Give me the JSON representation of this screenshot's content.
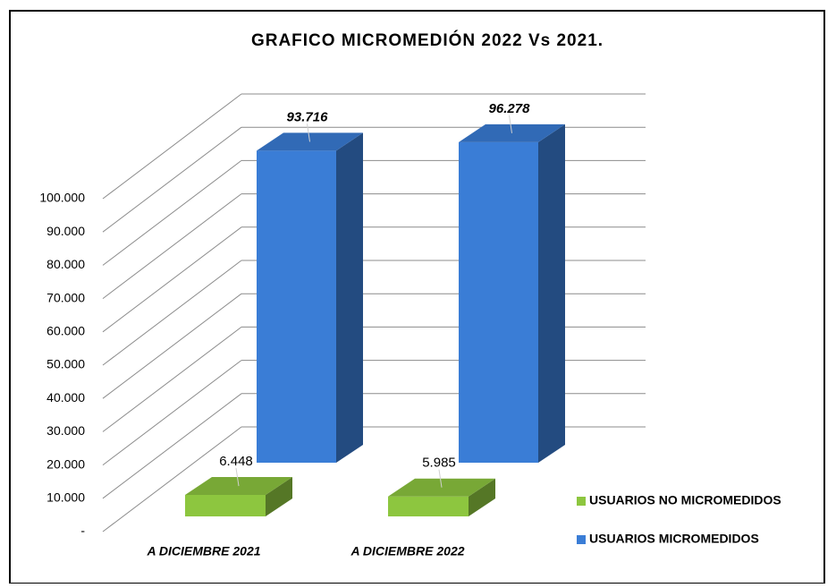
{
  "chart_data": {
    "type": "bar3d",
    "title": "GRAFICO MICROMEDIÓN 2022 Vs 2021.",
    "categories": [
      "A DICIEMBRE 2021",
      "A DICIEMBRE 2022"
    ],
    "series": [
      {
        "name": "USUARIOS NO MICROMEDIDOS",
        "color": "#8dc63f",
        "values": [
          6448,
          5985
        ],
        "value_labels": [
          "6.448",
          "5.985"
        ]
      },
      {
        "name": "USUARIOS MICROMEDIDOS",
        "color": "#3a7dd6",
        "values": [
          93716,
          96278
        ],
        "value_labels": [
          "93.716",
          "96.278"
        ]
      }
    ],
    "ylim": [
      0,
      100000
    ],
    "yticks": [
      {
        "value": 0,
        "label": "-"
      },
      {
        "value": 10000,
        "label": "10.000"
      },
      {
        "value": 20000,
        "label": "20.000"
      },
      {
        "value": 30000,
        "label": "30.000"
      },
      {
        "value": 40000,
        "label": "40.000"
      },
      {
        "value": 50000,
        "label": "50.000"
      },
      {
        "value": 60000,
        "label": "60.000"
      },
      {
        "value": 70000,
        "label": "70.000"
      },
      {
        "value": 80000,
        "label": "80.000"
      },
      {
        "value": 90000,
        "label": "90.000"
      },
      {
        "value": 100000,
        "label": "100.000"
      }
    ],
    "grid": true,
    "legend": "right"
  }
}
